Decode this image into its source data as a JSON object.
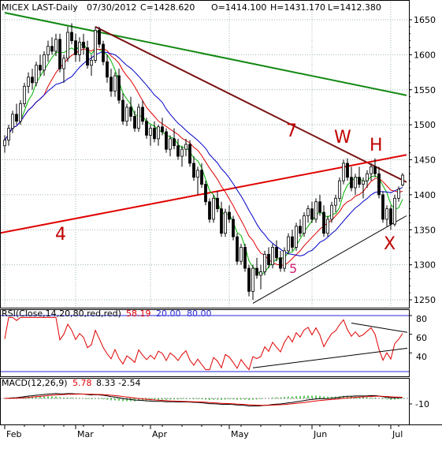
{
  "header": {
    "symbol_label": "MICEX LAST-Daily",
    "date": "07/30/2012",
    "close": "C=1428.620",
    "open": "O=1414.100",
    "high": "H=1431.170",
    "low": "L=1412.380"
  },
  "colors": {
    "background": "#ffffff",
    "frame": "#000000",
    "grid": "#9fb4b4",
    "candle": "#000000",
    "ma_green": "#00b400",
    "ma_red": "#e00000",
    "ma_blue": "#0000c8",
    "trend_green": "#118811",
    "trend_maroon": "#7a1212",
    "trend_red": "#e00000",
    "support_black": "#000000",
    "rsi_line": "#e00000",
    "rsi_level": "#2a2ad8",
    "macd_line": "#000000",
    "macd_signal": "#e00000",
    "macd_hist": "#00aa00",
    "annotation": "#c00000"
  },
  "panels": {
    "rsi": {
      "label": "RSI(Close,14,20,80,red,red)",
      "value": "58.19",
      "lower": "20.00",
      "upper": "80.00",
      "ticks": [
        "80",
        "60",
        "40"
      ]
    },
    "macd": {
      "label": "MACD(12,26,9)",
      "macd": "5.78",
      "signal": "8.33",
      "hist": "-2.54",
      "ticks": [
        "-10"
      ]
    }
  },
  "annotations": [
    {
      "text": "7"
    },
    {
      "text": "W"
    },
    {
      "text": "H"
    },
    {
      "text": "4"
    },
    {
      "text": "5"
    },
    {
      "text": "X"
    }
  ],
  "chart_data": {
    "type": "candlestick",
    "title": "MICEX LAST-Daily",
    "y_ticks": [
      "1650",
      "1600",
      "1550",
      "1500",
      "1450",
      "1400",
      "1350",
      "1300",
      "1250"
    ],
    "ylim": [
      1240,
      1670
    ],
    "grid": true,
    "x_labels": [
      "Feb",
      "Mar",
      "Apr",
      "May",
      "Jun",
      "Jul"
    ],
    "ohlc_approx": [
      [
        1470,
        1485,
        1460,
        1478
      ],
      [
        1478,
        1500,
        1470,
        1495
      ],
      [
        1495,
        1520,
        1488,
        1515
      ],
      [
        1515,
        1530,
        1500,
        1505
      ],
      [
        1505,
        1535,
        1500,
        1530
      ],
      [
        1530,
        1560,
        1525,
        1555
      ],
      [
        1555,
        1575,
        1545,
        1568
      ],
      [
        1568,
        1580,
        1550,
        1560
      ],
      [
        1560,
        1590,
        1555,
        1585
      ],
      [
        1585,
        1600,
        1570,
        1578
      ],
      [
        1578,
        1605,
        1570,
        1600
      ],
      [
        1600,
        1620,
        1590,
        1612
      ],
      [
        1612,
        1625,
        1600,
        1605
      ],
      [
        1605,
        1630,
        1598,
        1622
      ],
      [
        1622,
        1630,
        1575,
        1580
      ],
      [
        1580,
        1600,
        1560,
        1595
      ],
      [
        1595,
        1640,
        1590,
        1632
      ],
      [
        1632,
        1645,
        1615,
        1620
      ],
      [
        1620,
        1630,
        1590,
        1600
      ],
      [
        1600,
        1625,
        1590,
        1618
      ],
      [
        1618,
        1630,
        1600,
        1610
      ],
      [
        1610,
        1620,
        1580,
        1585
      ],
      [
        1585,
        1600,
        1570,
        1592
      ],
      [
        1592,
        1640,
        1588,
        1635
      ],
      [
        1635,
        1640,
        1610,
        1615
      ],
      [
        1615,
        1620,
        1585,
        1590
      ],
      [
        1590,
        1600,
        1560,
        1568
      ],
      [
        1568,
        1580,
        1540,
        1548
      ],
      [
        1548,
        1575,
        1540,
        1570
      ],
      [
        1570,
        1580,
        1530,
        1535
      ],
      [
        1535,
        1545,
        1500,
        1505
      ],
      [
        1505,
        1530,
        1498,
        1525
      ],
      [
        1525,
        1540,
        1505,
        1512
      ],
      [
        1512,
        1520,
        1490,
        1495
      ],
      [
        1495,
        1530,
        1490,
        1525
      ],
      [
        1525,
        1535,
        1500,
        1505
      ],
      [
        1505,
        1510,
        1480,
        1485
      ],
      [
        1485,
        1500,
        1470,
        1495
      ],
      [
        1495,
        1505,
        1475,
        1480
      ],
      [
        1480,
        1500,
        1470,
        1497
      ],
      [
        1497,
        1510,
        1485,
        1490
      ],
      [
        1490,
        1495,
        1460,
        1465
      ],
      [
        1465,
        1485,
        1455,
        1480
      ],
      [
        1480,
        1495,
        1465,
        1470
      ],
      [
        1470,
        1480,
        1450,
        1455
      ],
      [
        1455,
        1470,
        1440,
        1465
      ],
      [
        1465,
        1480,
        1455,
        1472
      ],
      [
        1472,
        1478,
        1440,
        1445
      ],
      [
        1445,
        1455,
        1420,
        1425
      ],
      [
        1425,
        1440,
        1400,
        1435
      ],
      [
        1435,
        1445,
        1410,
        1415
      ],
      [
        1415,
        1420,
        1385,
        1390
      ],
      [
        1390,
        1395,
        1360,
        1365
      ],
      [
        1365,
        1400,
        1360,
        1395
      ],
      [
        1395,
        1405,
        1375,
        1380
      ],
      [
        1380,
        1390,
        1340,
        1345
      ],
      [
        1345,
        1380,
        1340,
        1375
      ],
      [
        1375,
        1385,
        1360,
        1365
      ],
      [
        1365,
        1370,
        1335,
        1340
      ],
      [
        1340,
        1345,
        1300,
        1305
      ],
      [
        1305,
        1330,
        1300,
        1325
      ],
      [
        1325,
        1330,
        1290,
        1295
      ],
      [
        1295,
        1300,
        1255,
        1262
      ],
      [
        1262,
        1300,
        1250,
        1295
      ],
      [
        1295,
        1310,
        1280,
        1285
      ],
      [
        1285,
        1300,
        1265,
        1290
      ],
      [
        1290,
        1320,
        1285,
        1315
      ],
      [
        1315,
        1325,
        1295,
        1300
      ],
      [
        1300,
        1330,
        1295,
        1325
      ],
      [
        1325,
        1335,
        1305,
        1310
      ],
      [
        1310,
        1320,
        1290,
        1295
      ],
      [
        1295,
        1325,
        1290,
        1320
      ],
      [
        1320,
        1345,
        1315,
        1340
      ],
      [
        1340,
        1350,
        1320,
        1325
      ],
      [
        1325,
        1360,
        1320,
        1355
      ],
      [
        1355,
        1365,
        1340,
        1345
      ],
      [
        1345,
        1375,
        1340,
        1370
      ],
      [
        1370,
        1385,
        1360,
        1380
      ],
      [
        1380,
        1390,
        1360,
        1365
      ],
      [
        1365,
        1395,
        1360,
        1390
      ],
      [
        1390,
        1400,
        1370,
        1375
      ],
      [
        1375,
        1385,
        1340,
        1345
      ],
      [
        1345,
        1370,
        1340,
        1365
      ],
      [
        1365,
        1390,
        1360,
        1385
      ],
      [
        1385,
        1400,
        1375,
        1395
      ],
      [
        1395,
        1425,
        1390,
        1420
      ],
      [
        1420,
        1450,
        1415,
        1445
      ],
      [
        1445,
        1452,
        1420,
        1425
      ],
      [
        1425,
        1440,
        1405,
        1410
      ],
      [
        1410,
        1430,
        1400,
        1425
      ],
      [
        1425,
        1440,
        1410,
        1415
      ],
      [
        1415,
        1425,
        1395,
        1420
      ],
      [
        1420,
        1435,
        1410,
        1430
      ],
      [
        1430,
        1445,
        1420,
        1440
      ],
      [
        1440,
        1452,
        1425,
        1430
      ],
      [
        1430,
        1440,
        1395,
        1400
      ],
      [
        1400,
        1405,
        1360,
        1365
      ],
      [
        1365,
        1385,
        1355,
        1380
      ],
      [
        1380,
        1385,
        1350,
        1358
      ],
      [
        1358,
        1400,
        1355,
        1395
      ],
      [
        1395,
        1412,
        1390,
        1408
      ],
      [
        1414,
        1431,
        1412,
        1428
      ]
    ],
    "series": [
      {
        "type": "sma",
        "color": "#00b400"
      },
      {
        "type": "sma",
        "color": "#e00000"
      },
      {
        "type": "sma",
        "color": "#0000c8"
      }
    ],
    "trendlines": [
      {
        "color": "#118811",
        "from": [
          0,
          1660
        ],
        "to": [
          102,
          1542
        ]
      },
      {
        "color": "#7a1212",
        "from": [
          23,
          1640
        ],
        "to": [
          102,
          1418
        ]
      },
      {
        "color": "#e00000",
        "from": [
          -20,
          1325
        ],
        "to": [
          102,
          1457
        ]
      },
      {
        "color": "#000000",
        "from": [
          63,
          1245
        ],
        "to": [
          102,
          1370
        ]
      }
    ]
  }
}
